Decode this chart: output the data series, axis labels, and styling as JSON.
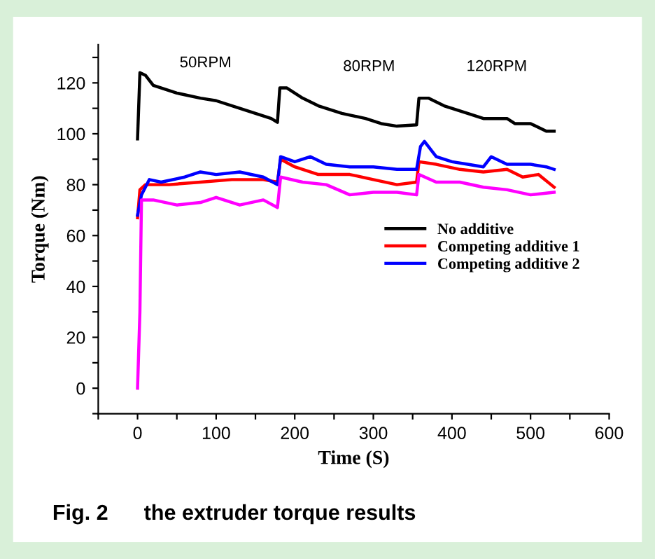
{
  "chart_data": {
    "type": "line",
    "title": "Fig. 2      the extruder torque results",
    "xlabel": "Time (S)",
    "ylabel": "Torque (Nm)",
    "xlim": [
      -50,
      600
    ],
    "ylim": [
      -10,
      135
    ],
    "xticks": [
      {
        "value": -50,
        "label": null
      },
      0,
      {
        "value": 50,
        "label": null
      },
      100,
      {
        "value": 150,
        "label": null
      },
      200,
      {
        "value": 250,
        "label": null
      },
      300,
      {
        "value": 350,
        "label": null
      },
      400,
      {
        "value": 450,
        "label": null
      },
      500,
      {
        "value": 550,
        "label": null
      },
      600
    ],
    "yticks": [
      {
        "value": -10,
        "label": null
      },
      0,
      {
        "value": 10,
        "label": null
      },
      20,
      {
        "value": 30,
        "label": null
      },
      40,
      {
        "value": 50,
        "label": null
      },
      60,
      {
        "value": 70,
        "label": null
      },
      80,
      {
        "value": 90,
        "label": null
      },
      100,
      {
        "value": 110,
        "label": null
      },
      120,
      {
        "value": 130,
        "label": null
      }
    ],
    "legend": "right",
    "grid": false,
    "line_style": "solid",
    "annotations": [
      "50RPM",
      "80RPM",
      "120RPM"
    ],
    "series": [
      {
        "name": "No additive",
        "color": "#000000",
        "x": [
          0,
          3,
          10,
          20,
          50,
          80,
          100,
          130,
          150,
          170,
          178,
          181,
          190,
          210,
          230,
          260,
          290,
          310,
          330,
          355,
          358,
          370,
          390,
          420,
          440,
          470,
          480,
          500,
          520,
          530
        ],
        "values": [
          98,
          124,
          123,
          119,
          116,
          114,
          113,
          110,
          108,
          106,
          104.5,
          118,
          118,
          114,
          111,
          108,
          106,
          104,
          103,
          103.5,
          114,
          114,
          111,
          108,
          106,
          106,
          104,
          104,
          101,
          101
        ]
      },
      {
        "name": "Competing additive 1",
        "color": "#ff0000",
        "x": [
          0,
          3,
          10,
          40,
          80,
          120,
          160,
          178,
          182,
          200,
          230,
          270,
          300,
          330,
          355,
          358,
          380,
          410,
          440,
          470,
          490,
          510,
          530
        ],
        "values": [
          67,
          78,
          80,
          80,
          81,
          82,
          82,
          81,
          90,
          87,
          84,
          84,
          82,
          80,
          81,
          89,
          88,
          86,
          85,
          86,
          83,
          84,
          79
        ]
      },
      {
        "name": "Competing additive 2",
        "color": "#0000ff",
        "x": [
          0,
          5,
          15,
          30,
          60,
          80,
          100,
          130,
          160,
          178,
          182,
          200,
          220,
          240,
          270,
          300,
          330,
          355,
          360,
          365,
          380,
          400,
          420,
          440,
          450,
          470,
          500,
          520,
          530
        ],
        "values": [
          68,
          76,
          82,
          81,
          83,
          85,
          84,
          85,
          83,
          80,
          91,
          89,
          91,
          88,
          87,
          87,
          86,
          86,
          95,
          97,
          91,
          89,
          88,
          87,
          91,
          88,
          88,
          87,
          86
        ]
      },
      {
        "color": "#ff00ff",
        "x": [
          0,
          3,
          5,
          20,
          50,
          80,
          100,
          130,
          160,
          178,
          182,
          210,
          240,
          270,
          300,
          330,
          355,
          358,
          380,
          410,
          440,
          470,
          500,
          530
        ],
        "values": [
          0,
          30,
          74,
          74,
          72,
          73,
          75,
          72,
          74,
          71,
          83,
          81,
          80,
          76,
          77,
          77,
          76,
          84,
          81,
          81,
          79,
          78,
          76,
          77
        ]
      }
    ]
  }
}
